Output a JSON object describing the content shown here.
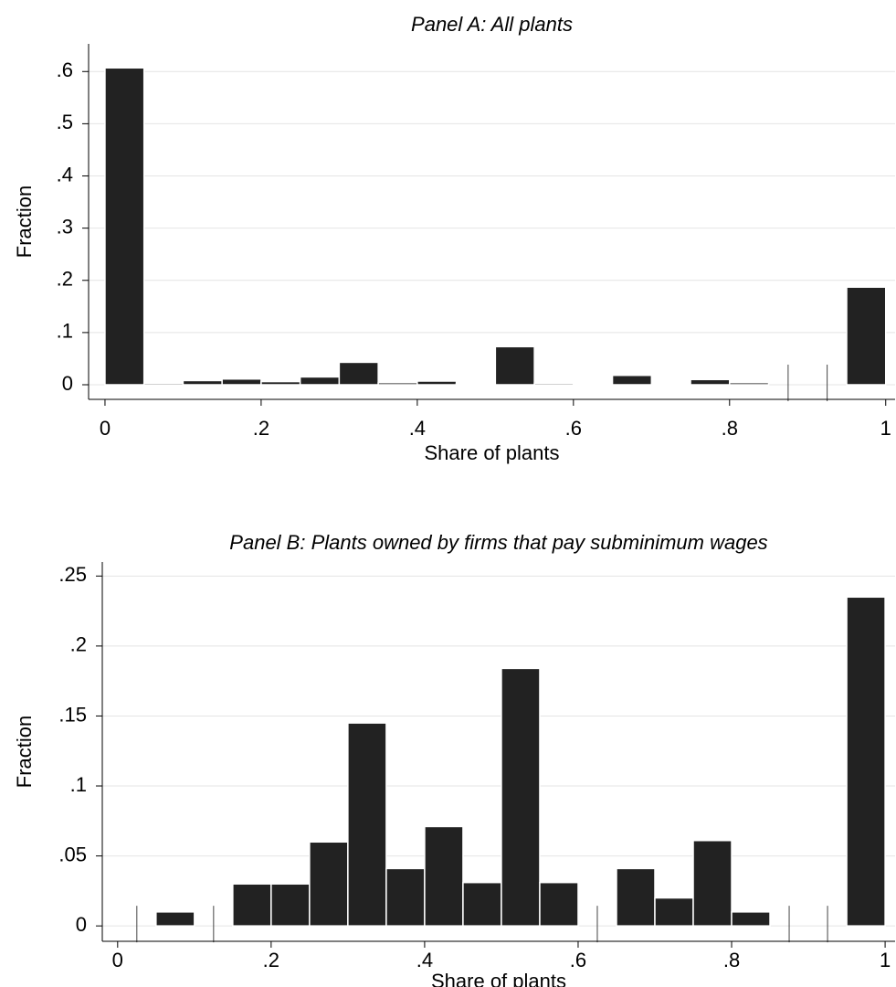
{
  "chart_data": [
    {
      "type": "histogram",
      "title": "Panel A: All plants",
      "xlabel": "Share of plants",
      "ylabel": "Fraction",
      "bins": [
        0,
        0.05,
        0.1,
        0.15,
        0.2,
        0.25,
        0.3,
        0.35,
        0.4,
        0.45,
        0.5,
        0.55,
        0.6,
        0.65,
        0.7,
        0.75,
        0.8,
        0.85,
        0.9,
        0.95,
        1
      ],
      "values": [
        0.607,
        0.003,
        0.008,
        0.011,
        0.006,
        0.015,
        0.043,
        0.004,
        0.007,
        0.002,
        0.073,
        0.003,
        0.002,
        0.018,
        0.001,
        0.01,
        0.004,
        0,
        0,
        0.187
      ],
      "color": "#222222",
      "xlim": [
        -0.021,
        1.012
      ],
      "ylim": [
        -0.028,
        0.653
      ],
      "xticks": [
        0,
        {
          "value": 0.2,
          "label": ".2"
        },
        {
          "value": 0.4,
          "label": ".4"
        },
        {
          "value": 0.6,
          "label": ".6"
        },
        {
          "value": 0.8,
          "label": ".8"
        },
        1
      ],
      "yticks": [
        0,
        {
          "value": 0.1,
          "label": ".1"
        },
        {
          "value": 0.2,
          "label": ".2"
        },
        {
          "value": 0.3,
          "label": ".3"
        },
        {
          "value": 0.4,
          "label": ".4"
        },
        {
          "value": 0.5,
          "label": ".5"
        },
        {
          "value": 0.6,
          "label": ".6"
        }
      ],
      "grid": true
    },
    {
      "type": "histogram",
      "title": "Panel B: Plants owned by firms that pay subminimum wages",
      "xlabel": "Share of plants",
      "ylabel": "Fraction",
      "bins": [
        0,
        0.05,
        0.1,
        0.15,
        0.2,
        0.25,
        0.3,
        0.35,
        0.4,
        0.45,
        0.5,
        0.55,
        0.6,
        0.65,
        0.7,
        0.75,
        0.8,
        0.85,
        0.9,
        0.95,
        1
      ],
      "values": [
        0,
        0.01,
        0,
        0.03,
        0.03,
        0.06,
        0.145,
        0.041,
        0.071,
        0.031,
        0.184,
        0.031,
        0,
        0.041,
        0.02,
        0.061,
        0.01,
        0,
        0,
        0.235
      ],
      "color": "#222222",
      "xlim": [
        -0.02,
        1.013
      ],
      "ylim": [
        -0.011,
        0.26
      ],
      "xticks": [
        0,
        {
          "value": 0.2,
          "label": ".2"
        },
        {
          "value": 0.4,
          "label": ".4"
        },
        {
          "value": 0.6,
          "label": ".6"
        },
        {
          "value": 0.8,
          "label": ".8"
        },
        1
      ],
      "yticks": [
        0,
        {
          "value": 0.05,
          "label": ".05"
        },
        {
          "value": 0.1,
          "label": ".1"
        },
        {
          "value": 0.15,
          "label": ".15"
        },
        {
          "value": 0.2,
          "label": ".2"
        },
        {
          "value": 0.25,
          "label": ".25"
        }
      ],
      "grid": true
    }
  ]
}
